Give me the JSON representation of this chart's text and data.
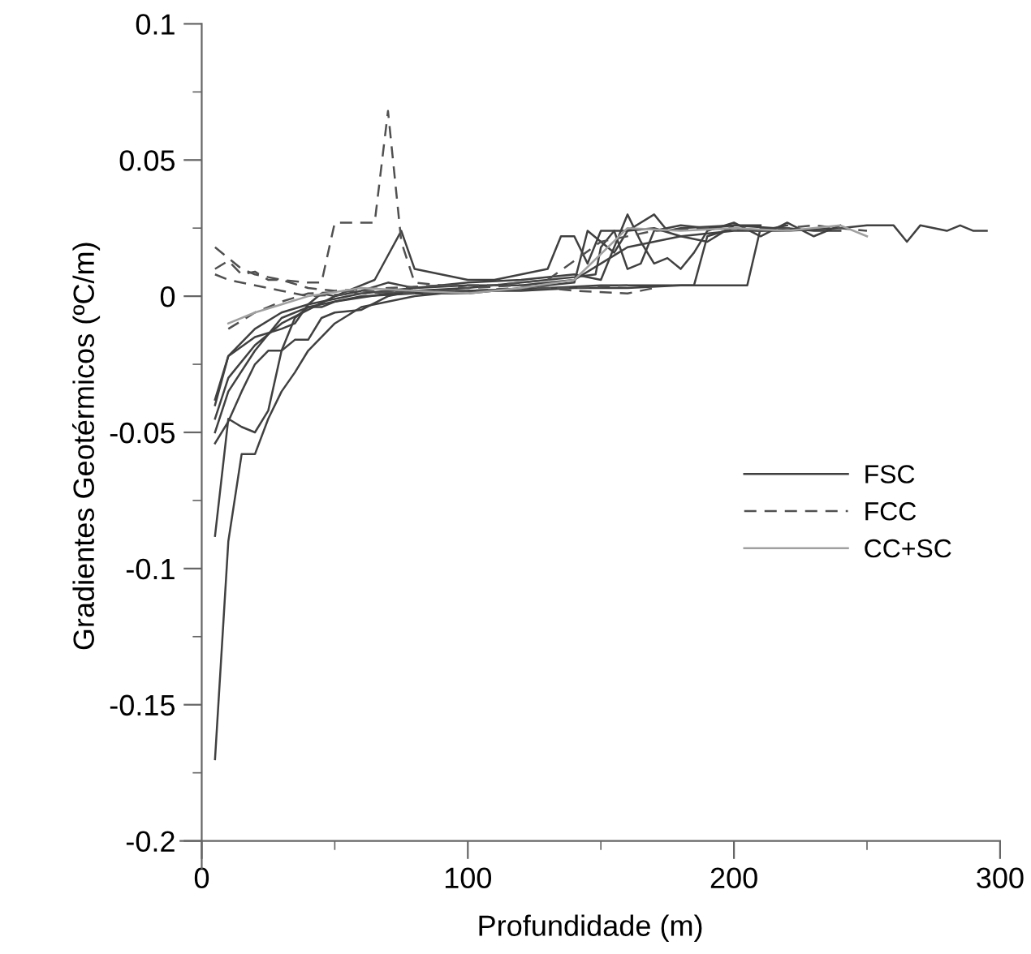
{
  "chart_data": {
    "type": "line",
    "xlabel": "Profundidade (m)",
    "ylabel": "Gradientes Geotérmicos (ºC/m)",
    "xlim": [
      -8,
      300
    ],
    "ylim": [
      -0.21,
      0.1
    ],
    "xticks": [
      0,
      {
        "value": 50,
        "label": null
      },
      100,
      {
        "value": 150,
        "label": null
      },
      200,
      {
        "value": 250,
        "label": null
      },
      300
    ],
    "yticks": [
      -0.2,
      {
        "value": -0.175,
        "label": null
      },
      -0.15,
      {
        "value": -0.125,
        "label": null
      },
      -0.1,
      {
        "value": -0.075,
        "label": null
      },
      -0.05,
      {
        "value": -0.025,
        "label": null
      },
      0,
      {
        "value": 0.025,
        "label": null
      },
      0.05,
      {
        "value": 0.075,
        "label": null
      },
      0.1
    ],
    "grid": false,
    "legend": "center right",
    "marker": "none",
    "series": [
      {
        "name": "FSC",
        "color": "#404040",
        "line_style": "solid",
        "x": [
          5,
          10,
          15,
          20,
          30,
          40,
          50,
          60,
          80,
          100,
          120,
          140,
          150,
          160,
          180,
          200,
          220,
          240,
          250,
          260,
          265,
          270,
          280,
          285,
          290,
          295
        ],
        "values": [
          -0.04,
          -0.022,
          -0.017,
          -0.012,
          -0.006,
          -0.003,
          -0.001,
          0.001,
          0.003,
          0.004,
          0.004,
          0.006,
          0.012,
          0.018,
          0.022,
          0.024,
          0.024,
          0.025,
          0.026,
          0.026,
          0.02,
          0.026,
          0.024,
          0.026,
          0.024,
          0.024
        ]
      },
      {
        "color": "#404040",
        "line_style": "solid",
        "x": [
          5,
          10,
          15,
          20,
          25,
          30,
          35,
          40,
          50,
          60,
          80,
          100,
          130,
          150,
          160,
          170,
          180,
          190,
          200,
          205,
          210,
          220,
          230,
          240
        ],
        "values": [
          -0.17,
          -0.09,
          -0.058,
          -0.058,
          -0.045,
          -0.035,
          -0.028,
          -0.02,
          -0.01,
          -0.004,
          0,
          0.002,
          0.003,
          0.004,
          0.004,
          0.004,
          0.004,
          0.004,
          0.004,
          0.004,
          0.025,
          0.025,
          0.024,
          0.024
        ]
      },
      {
        "color": "#404040",
        "line_style": "solid",
        "x": [
          5,
          10,
          15,
          20,
          25,
          30,
          35,
          40,
          45,
          50,
          70,
          90,
          120,
          140,
          160,
          180,
          185,
          190,
          200,
          210,
          220
        ],
        "values": [
          -0.088,
          -0.045,
          -0.048,
          -0.05,
          -0.042,
          -0.02,
          -0.008,
          -0.004,
          -0.004,
          -0.002,
          0.001,
          0.002,
          0.002,
          0.003,
          0.003,
          0.004,
          0.004,
          0.022,
          0.025,
          0.024,
          0.026
        ]
      },
      {
        "color": "#404040",
        "line_style": "solid",
        "x": [
          5,
          10,
          15,
          20,
          25,
          30,
          35,
          40,
          45,
          50,
          60,
          70,
          80,
          100,
          120,
          140,
          148,
          150,
          155,
          160,
          165,
          170,
          180,
          190,
          200
        ],
        "values": [
          -0.054,
          -0.046,
          -0.035,
          -0.025,
          -0.02,
          -0.02,
          -0.016,
          -0.016,
          -0.008,
          -0.006,
          -0.005,
          0,
          0.002,
          0.003,
          0.005,
          0.007,
          0.008,
          0.018,
          0.024,
          0.01,
          0.012,
          0.024,
          0.026,
          0.025,
          0.026
        ]
      },
      {
        "color": "#404040",
        "line_style": "solid",
        "x": [
          5,
          10,
          20,
          30,
          40,
          50,
          60,
          65,
          70,
          75,
          80,
          90,
          100,
          110,
          120,
          130,
          135,
          140,
          145,
          150,
          160,
          170,
          175,
          180,
          200,
          210
        ],
        "values": [
          -0.045,
          -0.03,
          -0.018,
          -0.01,
          -0.005,
          0,
          0.004,
          0.006,
          0.015,
          0.024,
          0.01,
          0.008,
          0.006,
          0.006,
          0.008,
          0.01,
          0.022,
          0.022,
          0.012,
          0.024,
          0.024,
          0.03,
          0.024,
          0.025,
          0.026,
          0.026
        ]
      },
      {
        "color": "#404040",
        "line_style": "solid",
        "x": [
          5,
          10,
          20,
          30,
          35,
          40,
          45,
          50,
          60,
          70,
          80,
          100,
          120,
          140,
          150,
          160,
          165,
          170,
          175,
          180,
          185,
          190,
          200,
          210,
          220,
          230,
          240
        ],
        "values": [
          -0.038,
          -0.022,
          -0.015,
          -0.012,
          -0.01,
          -0.003,
          0.001,
          0,
          0.002,
          0.005,
          0.003,
          0.005,
          0.006,
          0.008,
          0.006,
          0.03,
          0.02,
          0.012,
          0.014,
          0.01,
          0.016,
          0.024,
          0.027,
          0.022,
          0.027,
          0.022,
          0.026
        ]
      },
      {
        "color": "#404040",
        "line_style": "solid",
        "x": [
          5,
          10,
          20,
          30,
          40,
          50,
          60,
          80,
          100,
          120,
          140,
          145,
          150,
          155,
          160,
          170,
          180,
          190,
          200,
          215
        ],
        "values": [
          -0.05,
          -0.035,
          -0.02,
          -0.008,
          -0.004,
          -0.002,
          0,
          0.001,
          0.001,
          0.003,
          0.005,
          0.024,
          0.02,
          0.016,
          0.024,
          0.025,
          0.022,
          0.02,
          0.026,
          0.025
        ]
      },
      {
        "name": "FCC",
        "color": "#505050",
        "line_style": "dashed",
        "x": [
          5,
          10,
          15,
          20,
          25,
          30,
          40,
          45,
          50,
          55,
          65,
          70,
          75,
          80,
          100,
          120,
          140,
          160,
          170
        ],
        "values": [
          0.018,
          0.014,
          0.01,
          0.008,
          0.007,
          0.006,
          0.005,
          0.005,
          0.027,
          0.027,
          0.027,
          0.068,
          0.02,
          0.005,
          0.003,
          0.004,
          0.002,
          0.001,
          0.003
        ]
      },
      {
        "color": "#505050",
        "line_style": "dashed",
        "x": [
          5,
          10,
          15,
          20,
          25,
          30,
          40,
          50,
          70,
          90,
          110,
          130,
          150,
          170,
          190,
          210,
          230,
          250
        ],
        "values": [
          0.01,
          0.013,
          0.008,
          0.009,
          0.006,
          0.006,
          0.003,
          0.002,
          0.003,
          0.004,
          0.004,
          0.006,
          0.02,
          0.024,
          0.025,
          0.024,
          0.026,
          0.024
        ]
      },
      {
        "color": "#505050",
        "line_style": "dashed",
        "x": [
          5,
          10,
          20,
          30,
          40,
          60,
          80,
          100,
          120,
          140,
          160
        ],
        "values": [
          0.008,
          0.006,
          0.004,
          0.002,
          0,
          0.001,
          0.002,
          0.002,
          0.003,
          0.003,
          0.004
        ]
      },
      {
        "color": "#505050",
        "line_style": "dashed",
        "x": [
          10,
          20,
          30,
          40,
          60,
          80,
          100
        ],
        "values": [
          -0.012,
          -0.006,
          -0.002,
          0.001,
          0.002,
          0.001,
          0.002
        ]
      },
      {
        "name": "CC+SC",
        "color": "#a0a0a0",
        "line_style": "solid",
        "x": [
          10,
          20,
          30,
          40,
          60,
          80,
          100,
          120,
          140,
          160,
          180,
          200,
          220,
          240,
          250
        ],
        "values": [
          -0.01,
          -0.006,
          -0.003,
          0,
          0.003,
          0.002,
          0.001,
          0.003,
          0.006,
          0.025,
          0.024,
          0.025,
          0.024,
          0.026,
          0.022
        ]
      }
    ]
  }
}
